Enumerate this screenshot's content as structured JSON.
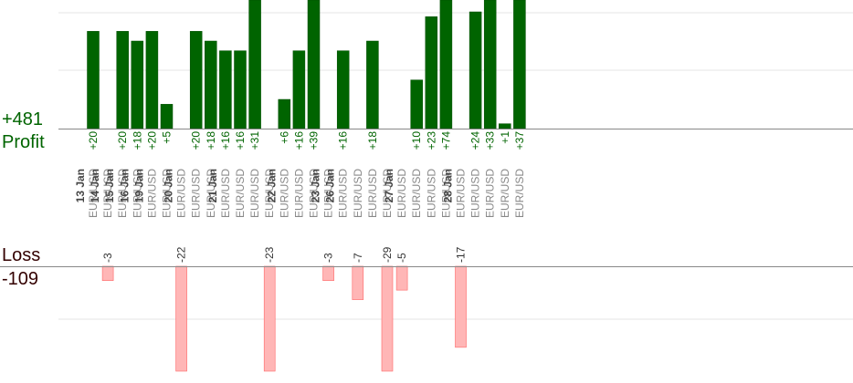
{
  "summary": {
    "profit_total": "+481",
    "profit_label": "Profit",
    "loss_label": "Loss",
    "loss_total": "-109"
  },
  "colors": {
    "profit_bar": "#006400",
    "profit_bar_stroke": "#004d00",
    "loss_bar": "#ffb6b6",
    "loss_bar_stroke": "#ff6666",
    "profit_text": "#006400",
    "loss_text": "#330000",
    "date_text": "#444444",
    "symbol_text": "#888888",
    "axis": "#888888",
    "grid": "#e6e6e6"
  },
  "chart_data": {
    "type": "bar",
    "columns": [
      {
        "date": "13 Jan",
        "symbol": "EUR/USD",
        "profit": 20
      },
      {
        "date": "14 Jan",
        "symbol": "EUR/USD",
        "loss": -3
      },
      {
        "date": "15 Jan",
        "symbol": "EUR/USD",
        "profit": 20
      },
      {
        "date": "16 Jan",
        "symbol": "EUR/USD",
        "profit": 18
      },
      {
        "date": "19 Jan",
        "symbol": "EUR/USD",
        "profit": 20
      },
      {
        "date": "",
        "symbol": "EUR/USD",
        "profit": 5
      },
      {
        "date": "20 Jan",
        "symbol": "EUR/USD",
        "loss": -22
      },
      {
        "date": "",
        "symbol": "EUR/USD",
        "profit": 20
      },
      {
        "date": "",
        "symbol": "EUR/USD",
        "profit": 18
      },
      {
        "date": "21 Jan",
        "symbol": "EUR/USD",
        "profit": 16
      },
      {
        "date": "",
        "symbol": "EUR/USD",
        "profit": 16
      },
      {
        "date": "",
        "symbol": "EUR/USD",
        "profit": 31
      },
      {
        "date": "",
        "symbol": "EUR/USD",
        "loss": -23
      },
      {
        "date": "22 Jan",
        "symbol": "EUR/USD",
        "profit": 6
      },
      {
        "date": "",
        "symbol": "EUR/USD",
        "profit": 16
      },
      {
        "date": "",
        "symbol": "EUR/USD",
        "profit": 39
      },
      {
        "date": "23 Jan",
        "symbol": "EUR/USD",
        "loss": -3
      },
      {
        "date": "26 Jan",
        "symbol": "EUR/USD",
        "profit": 16
      },
      {
        "date": "",
        "symbol": "EUR/USD",
        "loss": -7
      },
      {
        "date": "",
        "symbol": "EUR/USD",
        "profit": 18
      },
      {
        "date": "",
        "symbol": "EUR/USD",
        "loss": -29
      },
      {
        "date": "27 Jan",
        "symbol": "EUR/USD",
        "loss": -5
      },
      {
        "date": "",
        "symbol": "EUR/USD",
        "profit": 10
      },
      {
        "date": "",
        "symbol": "EUR/USD",
        "profit": 23
      },
      {
        "date": "",
        "symbol": "EUR/USD",
        "profit": 74
      },
      {
        "date": "28 Jan",
        "symbol": "EUR/USD",
        "loss": -17
      },
      {
        "date": "",
        "symbol": "EUR/USD",
        "profit": 24
      },
      {
        "date": "",
        "symbol": "EUR/USD",
        "profit": 33
      },
      {
        "date": "",
        "symbol": "EUR/USD",
        "profit": 1
      },
      {
        "date": "",
        "symbol": "EUR/USD",
        "profit": 37
      }
    ],
    "profit_ylim": [
      0,
      24
    ],
    "loss_ylim": [
      -22,
      0
    ],
    "grid": true
  }
}
